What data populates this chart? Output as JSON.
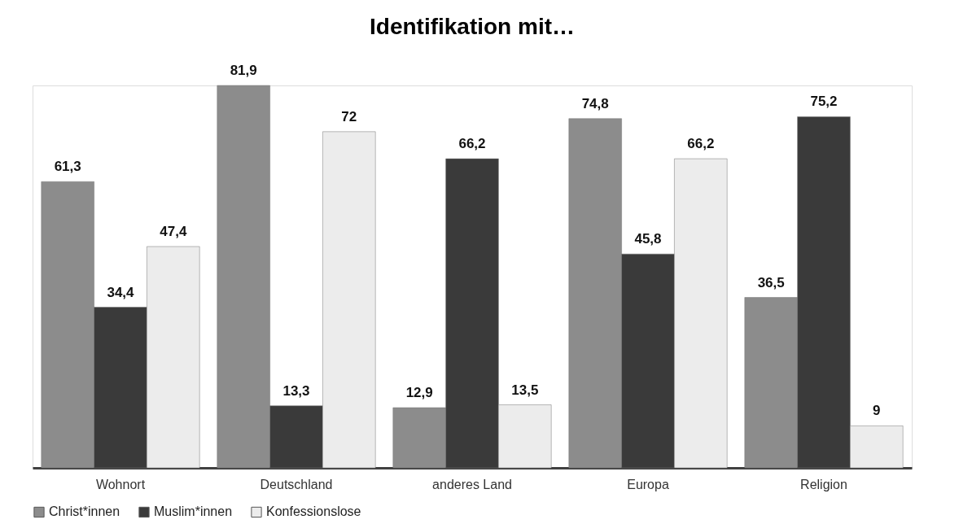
{
  "chart_data": {
    "type": "bar",
    "title": "Identifikation mit…",
    "categories": [
      "Wohnort",
      "Deutschland",
      "anderes Land",
      "Europa",
      "Religion"
    ],
    "series": [
      {
        "name": "Christ*innen",
        "color": "#8c8c8c",
        "values": [
          61.3,
          81.9,
          12.9,
          74.8,
          36.5
        ],
        "value_labels": [
          "61,3",
          "81,9",
          "12,9",
          "74,8",
          "36,5"
        ]
      },
      {
        "name": "Muslim*innen",
        "color": "#3a3a3a",
        "values": [
          34.4,
          13.3,
          66.2,
          45.8,
          75.2
        ],
        "value_labels": [
          "34,4",
          "13,3",
          "66,2",
          "45,8",
          "75,2"
        ]
      },
      {
        "name": "Konfessionslose",
        "color": "#ececec",
        "values": [
          47.4,
          72,
          13.5,
          66.2,
          9
        ],
        "value_labels": [
          "47,4",
          "72",
          "13,5",
          "66,2",
          "9"
        ]
      }
    ],
    "grid": false,
    "legend": "bottom"
  }
}
